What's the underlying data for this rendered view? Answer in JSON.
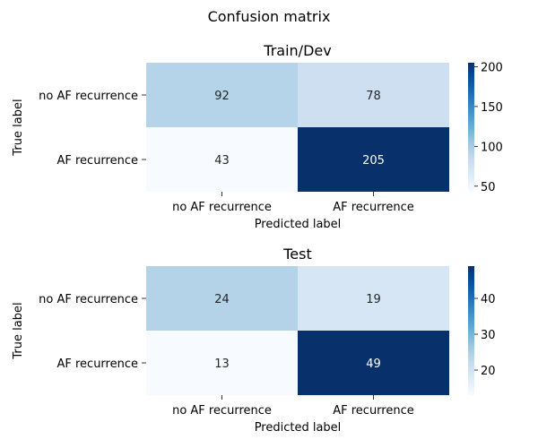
{
  "figure_title": "Confusion matrix",
  "chart_data": [
    {
      "type": "heatmap",
      "title": "Train/Dev",
      "xlabel": "Predicted label",
      "ylabel": "True label",
      "x_categories": [
        "no AF recurrence",
        "AF recurrence"
      ],
      "y_categories": [
        "no AF recurrence",
        "AF recurrence"
      ],
      "values": [
        [
          92,
          78
        ],
        [
          43,
          205
        ]
      ],
      "colormap": "Blues",
      "colorbar": {
        "range": [
          43,
          205
        ],
        "ticks": [
          50,
          100,
          150,
          200
        ]
      }
    },
    {
      "type": "heatmap",
      "title": "Test",
      "xlabel": "Predicted label",
      "ylabel": "True label",
      "x_categories": [
        "no AF recurrence",
        "AF recurrence"
      ],
      "y_categories": [
        "no AF recurrence",
        "AF recurrence"
      ],
      "values": [
        [
          24,
          19
        ],
        [
          13,
          49
        ]
      ],
      "colormap": "Blues",
      "colorbar": {
        "range": [
          13,
          49
        ],
        "ticks": [
          20,
          30,
          40
        ]
      }
    }
  ]
}
